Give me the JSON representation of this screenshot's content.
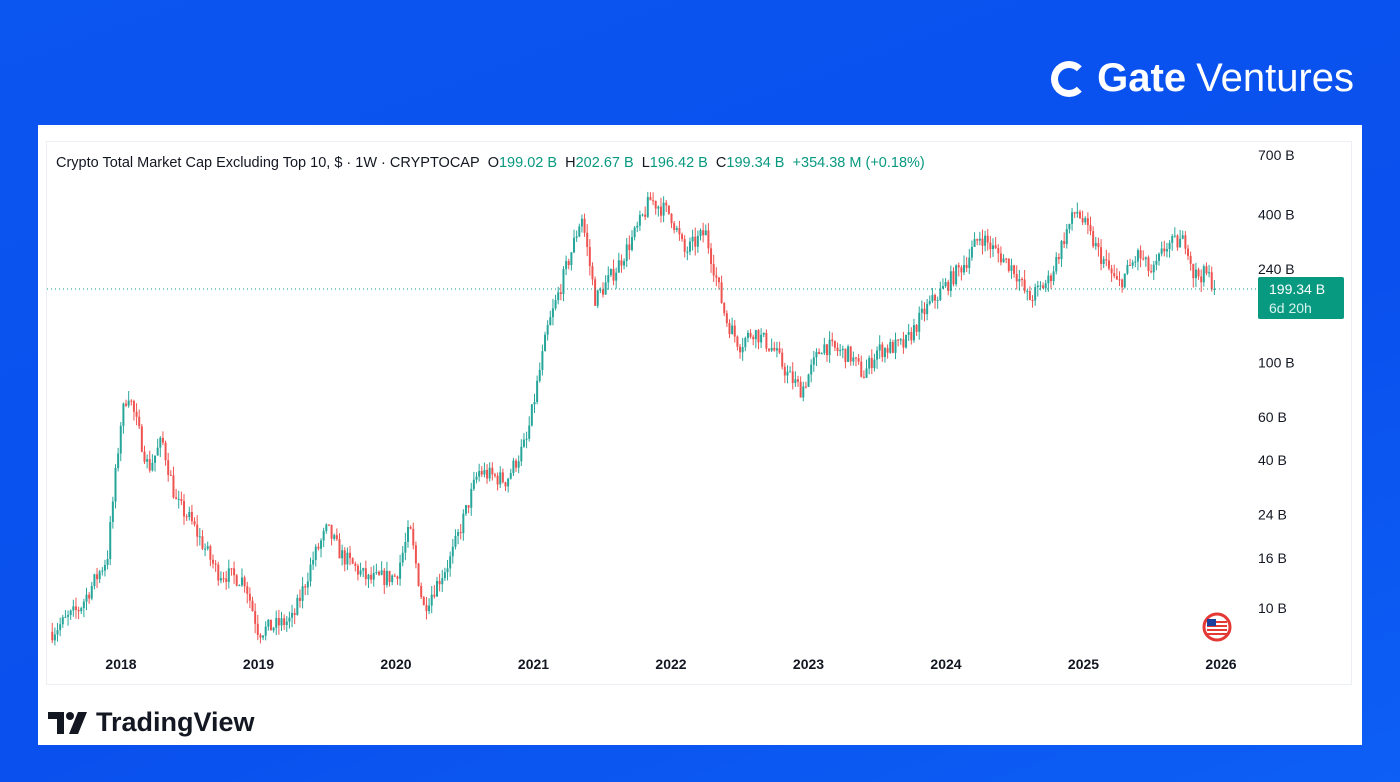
{
  "brand": {
    "name_bold": "Gate",
    "name_light": "Ventures"
  },
  "footer": {
    "logo_text": "TradingView"
  },
  "chart_data": {
    "type": "candlestick",
    "title": "Crypto Total Market Cap Excluding Top 10, $ · 1W · CRYPTOCAP",
    "ohlc": {
      "open_label": "O",
      "open": "199.02 B",
      "high_label": "H",
      "high": "202.67 B",
      "low_label": "L",
      "low": "196.42 B",
      "close_label": "C",
      "close": "199.34 B",
      "change": "+354.38 M (+0.18%)"
    },
    "last_price_label": "199.34 B",
    "countdown": "6d 20h",
    "yscale": "log",
    "ylim": [
      6,
      750
    ],
    "yticks": [
      {
        "v": 700,
        "label": "700 B"
      },
      {
        "v": 400,
        "label": "400 B"
      },
      {
        "v": 240,
        "label": "240 B"
      },
      {
        "v": 100,
        "label": "100 B"
      },
      {
        "v": 60,
        "label": "60 B"
      },
      {
        "v": 40,
        "label": "40 B"
      },
      {
        "v": 24,
        "label": "24 B"
      },
      {
        "v": 16,
        "label": "16 B"
      },
      {
        "v": 10,
        "label": "10 B"
      }
    ],
    "xticks": [
      "2018",
      "2019",
      "2020",
      "2021",
      "2022",
      "2023",
      "2024",
      "2025",
      "2026"
    ],
    "xlim": [
      2017.45,
      2026.2
    ],
    "units": "billions USD",
    "close_points": [
      [
        2017.5,
        8
      ],
      [
        2017.7,
        10
      ],
      [
        2017.9,
        16
      ],
      [
        2018.0,
        58
      ],
      [
        2018.05,
        77
      ],
      [
        2018.2,
        37
      ],
      [
        2018.3,
        48
      ],
      [
        2018.4,
        27
      ],
      [
        2018.5,
        23
      ],
      [
        2018.7,
        14
      ],
      [
        2018.9,
        13
      ],
      [
        2019.0,
        8
      ],
      [
        2019.25,
        9
      ],
      [
        2019.4,
        16
      ],
      [
        2019.5,
        21
      ],
      [
        2019.6,
        16.5
      ],
      [
        2019.8,
        13
      ],
      [
        2020.0,
        13.5
      ],
      [
        2020.1,
        21
      ],
      [
        2020.2,
        10
      ],
      [
        2020.4,
        16
      ],
      [
        2020.6,
        36
      ],
      [
        2020.8,
        33
      ],
      [
        2020.95,
        48
      ],
      [
        2021.1,
        135
      ],
      [
        2021.3,
        315
      ],
      [
        2021.35,
        400
      ],
      [
        2021.45,
        180
      ],
      [
        2021.6,
        240
      ],
      [
        2021.75,
        345
      ],
      [
        2021.85,
        460
      ],
      [
        2022.0,
        400
      ],
      [
        2022.1,
        280
      ],
      [
        2022.25,
        340
      ],
      [
        2022.4,
        150
      ],
      [
        2022.5,
        118
      ],
      [
        2022.6,
        135
      ],
      [
        2022.75,
        112
      ],
      [
        2022.85,
        89
      ],
      [
        2022.95,
        77
      ],
      [
        2023.1,
        118
      ],
      [
        2023.3,
        107
      ],
      [
        2023.4,
        89
      ],
      [
        2023.5,
        112
      ],
      [
        2023.7,
        118
      ],
      [
        2023.85,
        164
      ],
      [
        2024.0,
        206
      ],
      [
        2024.15,
        261
      ],
      [
        2024.25,
        330
      ],
      [
        2024.35,
        287
      ],
      [
        2024.5,
        239
      ],
      [
        2024.6,
        180
      ],
      [
        2024.75,
        217
      ],
      [
        2024.88,
        346
      ],
      [
        2024.95,
        420
      ],
      [
        2025.1,
        287
      ],
      [
        2025.25,
        206
      ],
      [
        2025.4,
        275
      ],
      [
        2025.5,
        228
      ],
      [
        2025.6,
        300
      ],
      [
        2025.75,
        314
      ],
      [
        2025.8,
        228
      ],
      [
        2025.9,
        228
      ],
      [
        2025.97,
        199.34
      ]
    ],
    "colors": {
      "up": "#26a69a",
      "down": "#ef5350",
      "label_bg": "#089981"
    }
  }
}
